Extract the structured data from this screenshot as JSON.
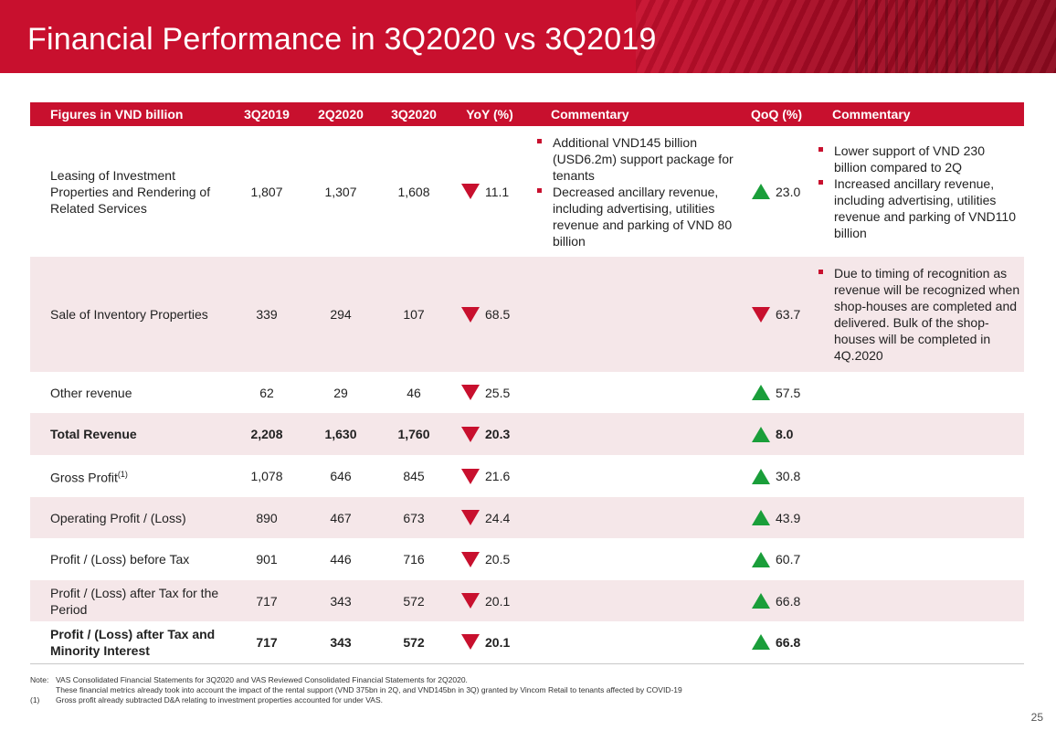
{
  "title": "Financial Performance in 3Q2020 vs 3Q2019",
  "colors": {
    "brand_red": "#c8102e",
    "up_green": "#1a9e3a",
    "row_shade": "#f5e7e9"
  },
  "table": {
    "headers": [
      "Figures in VND billion",
      "3Q2019",
      "2Q2020",
      "3Q2020",
      "YoY (%)",
      "Commentary",
      "QoQ (%)",
      "Commentary"
    ],
    "rows": [
      {
        "label": "Leasing of Investment Properties and Rendering of Related Services",
        "q3_2019": "1,807",
        "q2_2020": "1,307",
        "q3_2020": "1,608",
        "yoy": "11.1",
        "yoy_dir": "down-arrow-icon",
        "yoy_comments": [
          "Additional VND145 billion (USD6.2m) support package for tenants",
          "Decreased ancillary revenue, including advertising, utilities revenue and parking of VND 80 billion"
        ],
        "qoq": "23.0",
        "qoq_dir": "up-arrow-icon",
        "qoq_comments": [
          "Lower support of VND 230 billion compared to 2Q",
          "Increased ancillary revenue, including advertising, utilities revenue and parking of VND110 billion"
        ]
      },
      {
        "label": "Sale of Inventory Properties",
        "q3_2019": "339",
        "q2_2020": "294",
        "q3_2020": "107",
        "yoy": "68.5",
        "yoy_dir": "down-arrow-icon",
        "qoq": "63.7",
        "qoq_dir": "down-arrow-icon",
        "qoq_comments": [
          "Due to timing of recognition as revenue will be recognized when shop-houses are completed and delivered. Bulk of the shop-houses will be completed in 4Q.2020"
        ]
      },
      {
        "label": "Other revenue",
        "q3_2019": "62",
        "q2_2020": "29",
        "q3_2020": "46",
        "yoy": "25.5",
        "yoy_dir": "down-arrow-icon",
        "qoq": "57.5",
        "qoq_dir": "up-arrow-icon"
      },
      {
        "label": "Total Revenue",
        "q3_2019": "2,208",
        "q2_2020": "1,630",
        "q3_2020": "1,760",
        "yoy": "20.3",
        "yoy_dir": "down-arrow-icon",
        "qoq": "8.0",
        "qoq_dir": "up-arrow-icon"
      },
      {
        "label": "Gross Profit",
        "label_sup": "(1)",
        "q3_2019": "1,078",
        "q2_2020": "646",
        "q3_2020": "845",
        "yoy": "21.6",
        "yoy_dir": "down-arrow-icon",
        "qoq": "30.8",
        "qoq_dir": "up-arrow-icon"
      },
      {
        "label": "Operating Profit / (Loss)",
        "q3_2019": "890",
        "q2_2020": "467",
        "q3_2020": "673",
        "yoy": "24.4",
        "yoy_dir": "down-arrow-icon",
        "qoq": "43.9",
        "qoq_dir": "up-arrow-icon"
      },
      {
        "label": "Profit / (Loss) before Tax",
        "q3_2019": "901",
        "q2_2020": "446",
        "q3_2020": "716",
        "yoy": "20.5",
        "yoy_dir": "down-arrow-icon",
        "qoq": "60.7",
        "qoq_dir": "up-arrow-icon"
      },
      {
        "label": "Profit / (Loss) after Tax for the Period",
        "q3_2019": "717",
        "q2_2020": "343",
        "q3_2020": "572",
        "yoy": "20.1",
        "yoy_dir": "down-arrow-icon",
        "qoq": "66.8",
        "qoq_dir": "up-arrow-icon"
      },
      {
        "label": "Profit / (Loss) after Tax and Minority Interest",
        "q3_2019": "717",
        "q2_2020": "343",
        "q3_2020": "572",
        "yoy": "20.1",
        "yoy_dir": "down-arrow-icon",
        "qoq": "66.8",
        "qoq_dir": "up-arrow-icon"
      }
    ]
  },
  "notes": {
    "note_key": "Note:",
    "note_line1": "VAS Consolidated Financial Statements for 3Q2020 and VAS Reviewed Consolidated Financial Statements for 2Q2020.",
    "note_line2": "These financial metrics already took into account the impact of the rental support (VND 375bn in 2Q, and VND145bn in 3Q) granted by Vincom Retail to tenants affected by COVID-19",
    "fn_key": "(1)",
    "fn_text": "Gross profit already subtracted D&A relating to investment properties accounted for under VAS."
  },
  "page_number": "25"
}
